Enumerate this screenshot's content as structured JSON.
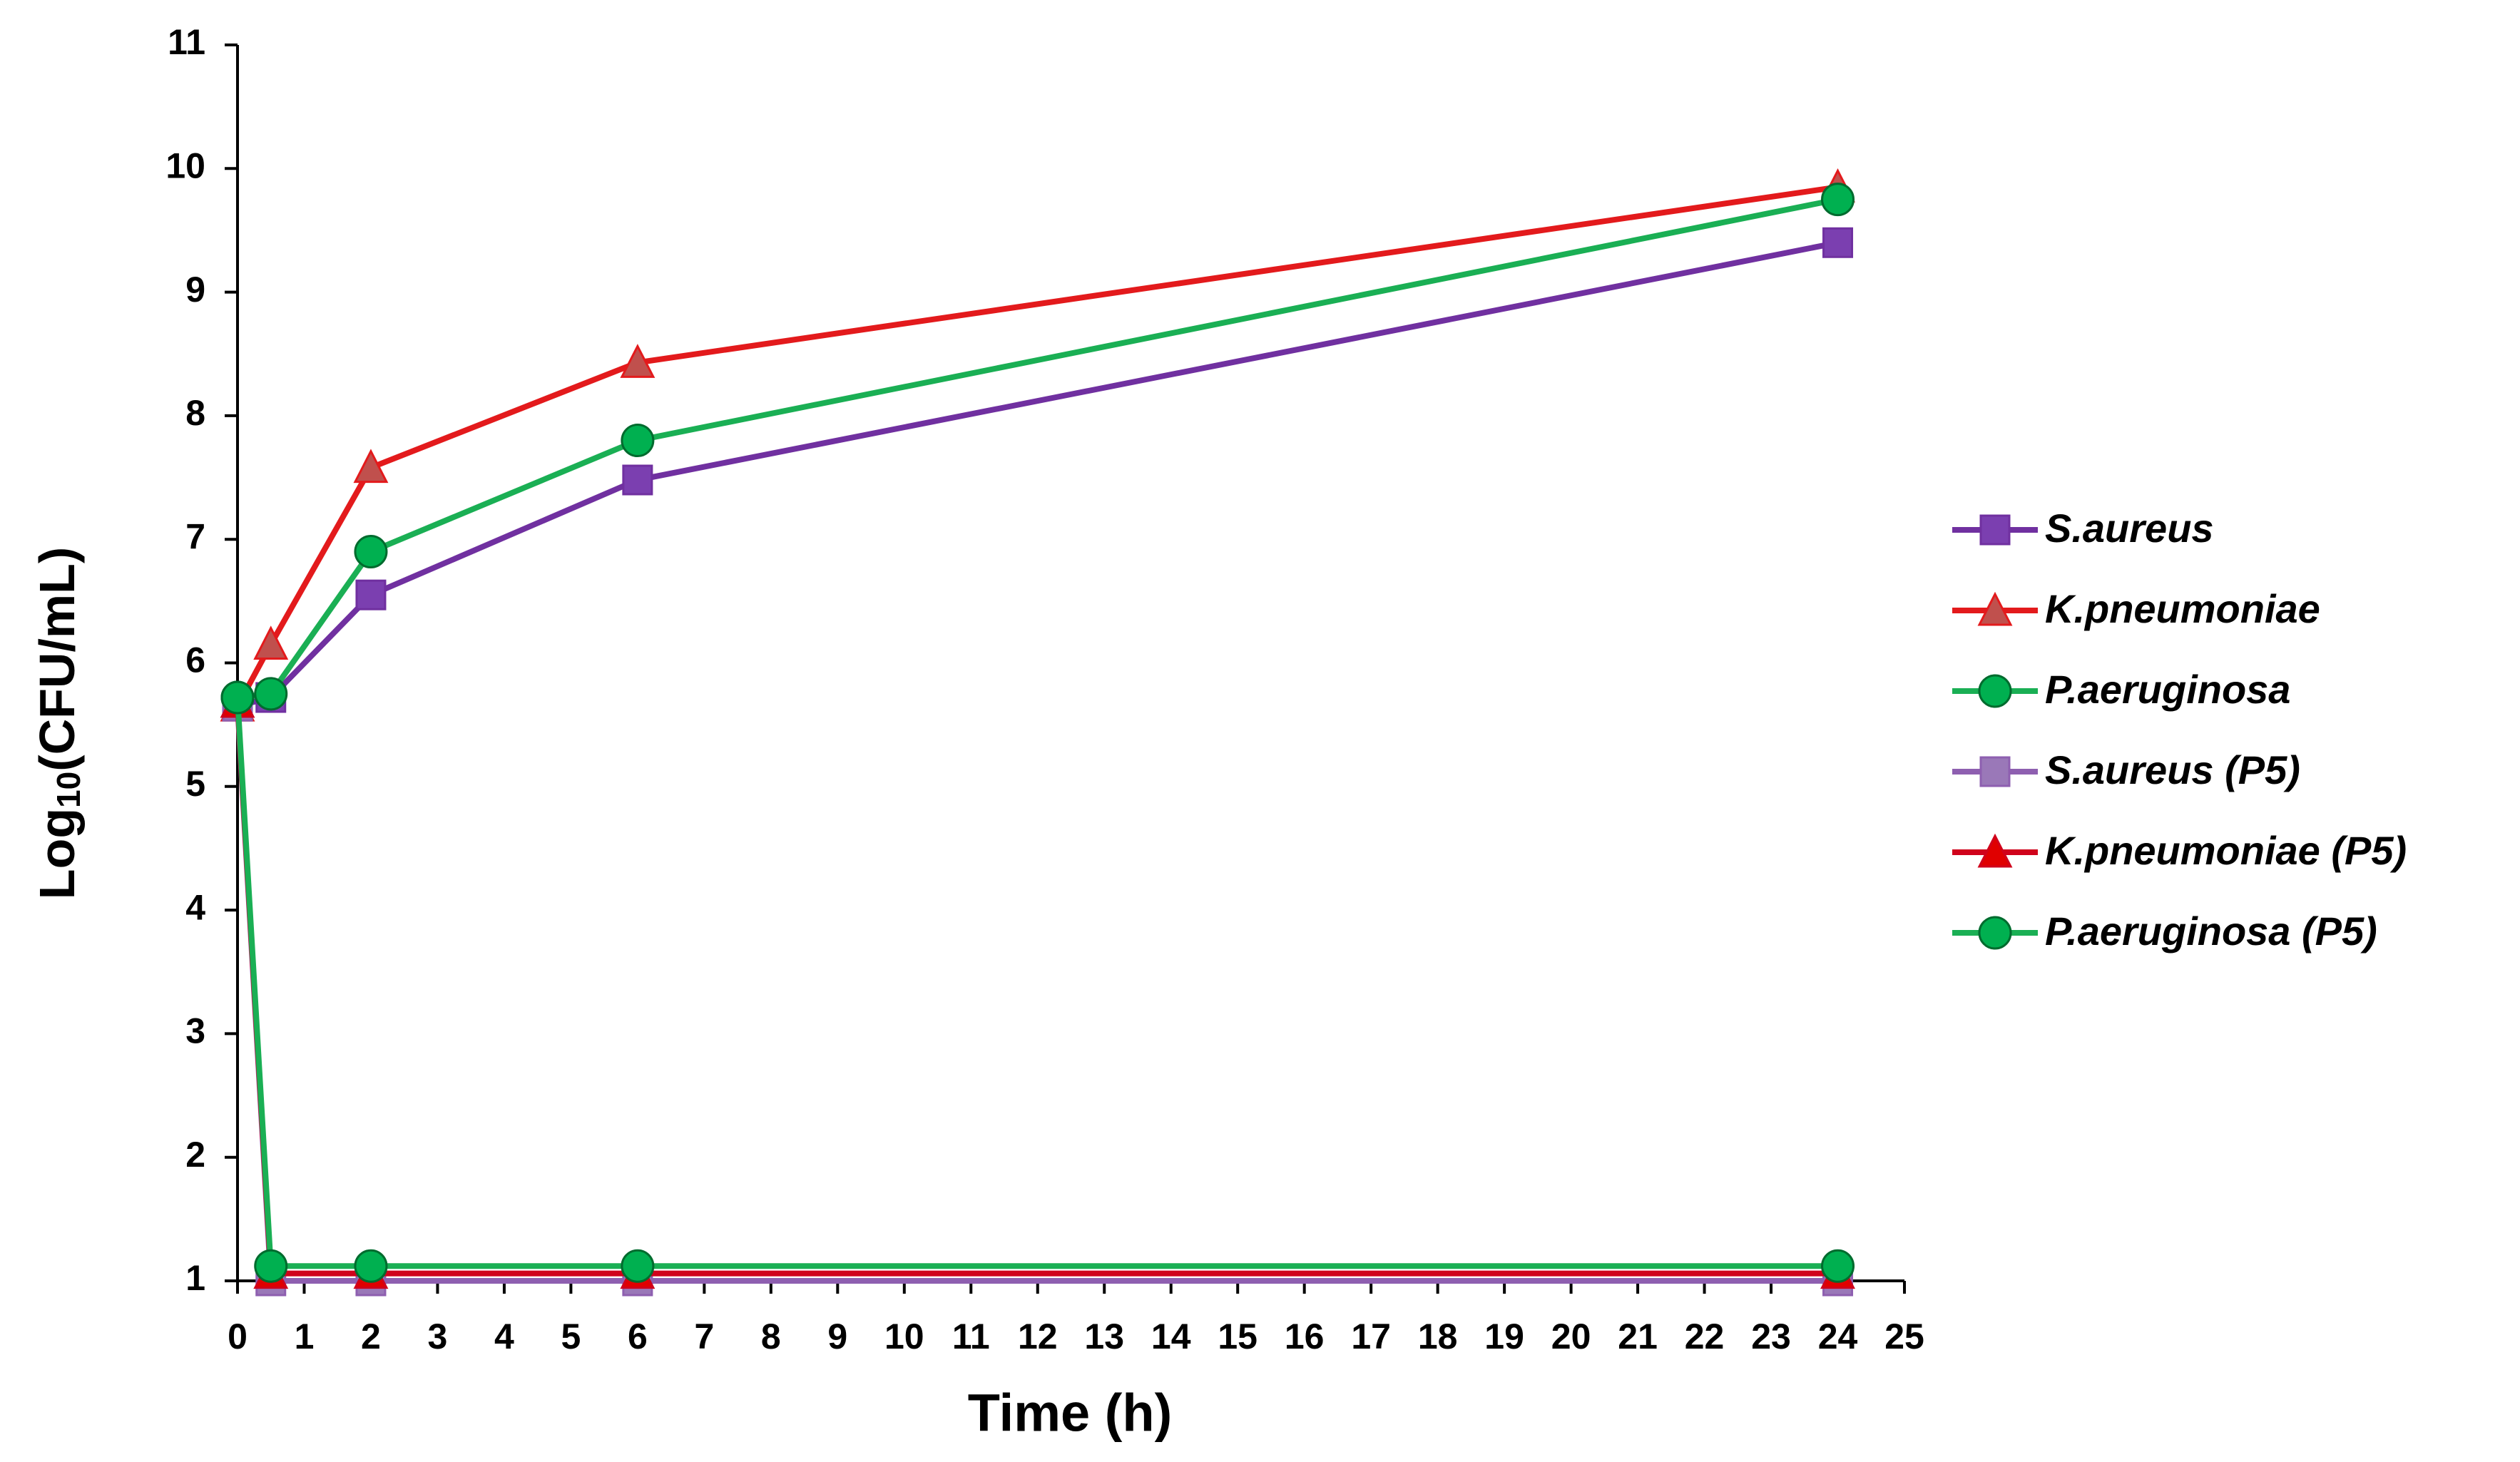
{
  "chart_data": {
    "type": "line",
    "x_label": "Time (h)",
    "y_label": {
      "base": "Log",
      "subscript": "10",
      "rest": "(CFU/mL)"
    },
    "x": [
      0,
      0.5,
      2,
      6,
      24
    ],
    "xlim": [
      0,
      25
    ],
    "xticks": [
      0,
      1,
      2,
      3,
      4,
      5,
      6,
      7,
      8,
      9,
      10,
      11,
      12,
      13,
      14,
      15,
      16,
      17,
      18,
      19,
      20,
      21,
      22,
      23,
      24,
      25
    ],
    "ylim": [
      1,
      11
    ],
    "yticks": [
      1,
      2,
      3,
      4,
      5,
      6,
      7,
      8,
      9,
      10,
      11
    ],
    "grid": false,
    "legend": "right",
    "series": [
      {
        "name": "S.aureus",
        "color": "#7030a0",
        "marker": "square",
        "marker_color": "#7b3fb0",
        "values": [
          5.65,
          5.72,
          6.55,
          7.48,
          9.4
        ]
      },
      {
        "name": "K.pneumoniae",
        "color": "#e31a1c",
        "marker": "triangle",
        "marker_color": "#c0504d",
        "values": [
          5.65,
          6.15,
          7.58,
          8.43,
          9.85
        ]
      },
      {
        "name": "P.aeruginosa",
        "color": "#1aaf54",
        "marker": "circle",
        "marker_color": "#00b050",
        "values": [
          5.72,
          5.75,
          6.9,
          7.8,
          9.75
        ]
      },
      {
        "name": "S.aureus (P5)",
        "color": "#8e5fb0",
        "marker": "square",
        "marker_color": "#9a78b8",
        "values": [
          5.65,
          1.0,
          1.0,
          1.0,
          1.0
        ]
      },
      {
        "name": "K.pneumoniae (P5)",
        "color": "#d0021b",
        "marker": "triangle",
        "marker_color": "#e00000",
        "values": [
          5.68,
          1.06,
          1.06,
          1.06,
          1.06
        ]
      },
      {
        "name": "P.aeruginosa (P5)",
        "color": "#1aaf54",
        "marker": "circle",
        "marker_color": "#00b050",
        "values": [
          5.72,
          1.12,
          1.12,
          1.12,
          1.12
        ]
      }
    ]
  }
}
